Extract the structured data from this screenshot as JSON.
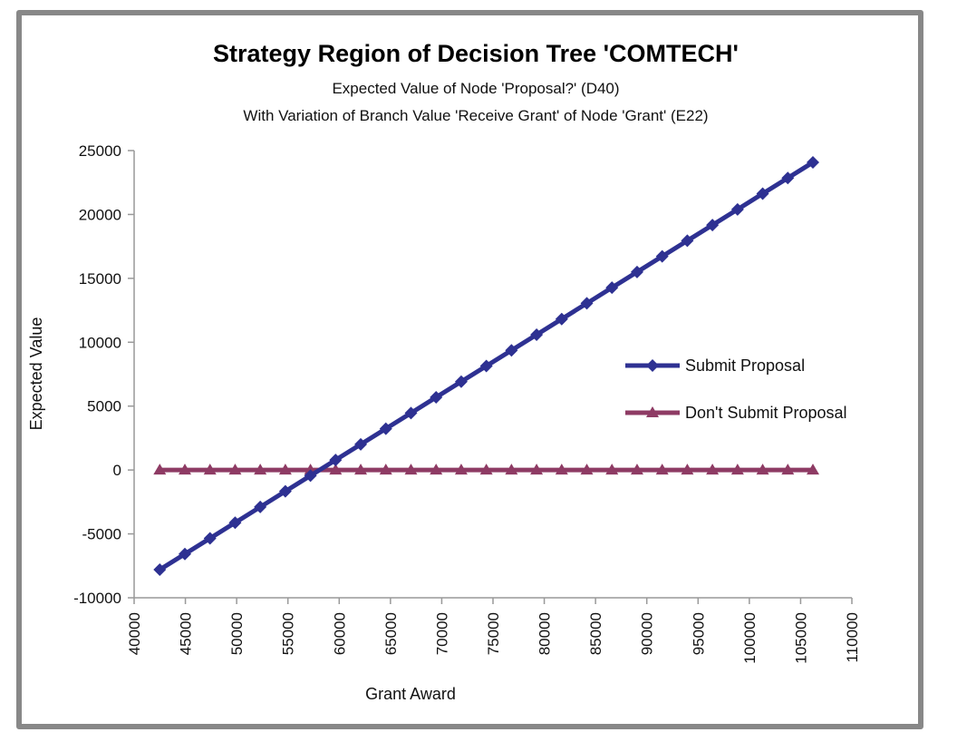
{
  "chart_data": {
    "type": "line",
    "title": "Strategy Region of Decision Tree 'COMTECH'",
    "subtitle_lines": [
      "Expected Value of Node 'Proposal?' (D40)",
      "With Variation of Branch Value 'Receive Grant' of Node 'Grant' (E22)"
    ],
    "xlabel": "Grant Award",
    "ylabel": "Expected Value",
    "xlim": [
      40000,
      110000
    ],
    "ylim": [
      -10000,
      25000
    ],
    "x_ticks": [
      "40000",
      "45000",
      "50000",
      "55000",
      "60000",
      "65000",
      "70000",
      "75000",
      "80000",
      "85000",
      "90000",
      "95000",
      "100000",
      "105000",
      "110000"
    ],
    "y_ticks": [
      "25000",
      "20000",
      "15000",
      "10000",
      "5000",
      "0",
      "-5000",
      "-10000"
    ],
    "grid": false,
    "legend_placement": "right",
    "x": [
      42500,
      44950,
      47400,
      49850,
      52300,
      54750,
      57200,
      59650,
      62100,
      64550,
      67000,
      69450,
      71900,
      74350,
      76800,
      79250,
      81700,
      84150,
      86600,
      89050,
      91500,
      93950,
      96400,
      98850,
      101300,
      103750,
      106200
    ],
    "series": [
      {
        "name": "Submit Proposal",
        "color": "#2E3192",
        "marker": "diamond",
        "values": [
          -7800,
          -6574,
          -5348,
          -4122,
          -2896,
          -1670,
          -444,
          782,
          2008,
          3234,
          4460,
          5686,
          6912,
          8138,
          9364,
          10590,
          11816,
          13042,
          14268,
          15494,
          16720,
          17946,
          19172,
          20398,
          21624,
          22850,
          24076
        ]
      },
      {
        "name": "Don't Submit Proposal",
        "color": "#8E3B64",
        "marker": "triangle",
        "values": [
          0,
          0,
          0,
          0,
          0,
          0,
          0,
          0,
          0,
          0,
          0,
          0,
          0,
          0,
          0,
          0,
          0,
          0,
          0,
          0,
          0,
          0,
          0,
          0,
          0,
          0,
          0
        ]
      }
    ]
  }
}
